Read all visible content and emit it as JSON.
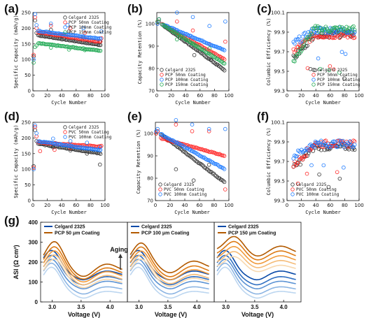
{
  "panel_labels": [
    "(a)",
    "(b)",
    "(c)",
    "(d)",
    "(e)",
    "(f)",
    "(g)"
  ],
  "colors": {
    "celgard": "#333333",
    "pc50": "#ff2a2a",
    "pc100": "#1e7bff",
    "pc150": "#22aa55",
    "g_celgard": [
      "#0a4aa8",
      "#2f6fc2",
      "#5c93d4",
      "#8cb5e3",
      "#bcd6f0"
    ],
    "g_pcp": [
      "#b35a00",
      "#dd7a14",
      "#f09a3c",
      "#f5bb77",
      "#f8d8ae"
    ]
  },
  "chart_data": [
    {
      "id": "a",
      "type": "scatter",
      "xlabel": "Cycle Number",
      "ylabel": "Specific Capacity (mAh/g)",
      "xlim": [
        0,
        100
      ],
      "ylim": [
        0,
        250
      ],
      "xticks": [
        "0",
        "20",
        "40",
        "60",
        "80",
        "100"
      ],
      "yticks": [
        "0",
        "50",
        "100",
        "150",
        "200",
        "250"
      ],
      "legend_position": "top-right",
      "series": [
        {
          "name": "Celgard 2325",
          "color_key": "celgard",
          "start": 178,
          "end": 146,
          "early": [
            110,
            225,
            185
          ],
          "outliers": [
            [
              25,
              195
            ],
            [
              50,
              190
            ],
            [
              70,
              170
            ],
            [
              93,
              158
            ]
          ]
        },
        {
          "name": "PCP 50nm Coating",
          "color_key": "pc50",
          "start": 188,
          "end": 156,
          "early": [
            115,
            235,
            200
          ],
          "outliers": [
            [
              25,
              208
            ],
            [
              52,
              200
            ],
            [
              72,
              185
            ],
            [
              95,
              168
            ]
          ]
        },
        {
          "name": "PCP 100nm Coating",
          "color_key": "pc100",
          "start": 192,
          "end": 166,
          "early": [
            100,
            245,
            210
          ],
          "outliers": [
            [
              25,
              215
            ],
            [
              48,
              210
            ],
            [
              70,
              200
            ],
            [
              95,
              190
            ]
          ]
        },
        {
          "name": "PCP 150nm Coating",
          "color_key": "pc150",
          "start": 152,
          "end": 128,
          "early": [
            90,
            140,
            145
          ],
          "outliers": [
            [
              25,
              138
            ],
            [
              50,
              132
            ],
            [
              72,
              130
            ]
          ]
        }
      ]
    },
    {
      "id": "b",
      "type": "scatter",
      "xlabel": "Cycle Number",
      "ylabel": "Capacity Retention (%)",
      "xlim": [
        0,
        100
      ],
      "ylim": [
        70,
        105
      ],
      "xticks": [
        "0",
        "20",
        "40",
        "60",
        "80",
        "100"
      ],
      "yticks": [
        "70",
        "80",
        "90",
        "100"
      ],
      "legend_position": "bottom-left",
      "series": [
        {
          "name": "Celgard 2325",
          "color_key": "celgard",
          "start": 100,
          "end": 79,
          "early": [
            100,
            101
          ],
          "outliers": [
            [
              28,
              96
            ],
            [
              52,
              86
            ],
            [
              75,
              84
            ]
          ]
        },
        {
          "name": "PCP 50nm Coating",
          "color_key": "pc50",
          "start": 100,
          "end": 84,
          "early": [
            101,
            102
          ],
          "outliers": [
            [
              28,
              101
            ],
            [
              50,
              97
            ],
            [
              73,
              91
            ],
            [
              95,
              92
            ]
          ]
        },
        {
          "name": "PCP 100nm Coating",
          "color_key": "pc100",
          "start": 100,
          "end": 88,
          "early": [
            100,
            102
          ],
          "outliers": [
            [
              28,
              105
            ],
            [
              50,
              103
            ],
            [
              73,
              99
            ],
            [
              95,
              101
            ]
          ]
        },
        {
          "name": "PCP 150nm Coating",
          "color_key": "pc150",
          "start": 100,
          "end": 82,
          "early": [
            101,
            102
          ],
          "outliers": [
            [
              28,
              93
            ],
            [
              50,
              91
            ],
            [
              73,
              89
            ]
          ]
        }
      ]
    },
    {
      "id": "c",
      "type": "scatter",
      "xlabel": "Cycle Number",
      "ylabel": "Columbic Efficiency (%)",
      "xlim": [
        0,
        100
      ],
      "ylim": [
        99.3,
        100.1
      ],
      "xticks": [
        "0",
        "20",
        "40",
        "60",
        "80",
        "100"
      ],
      "yticks": [
        "99.3",
        "99.5",
        "99.7",
        "99.9",
        "100.1"
      ],
      "legend_position": "bottom-right",
      "series": [
        {
          "name": "Celgard 2325",
          "color_key": "celgard",
          "level": 99.88,
          "low": 99.62
        },
        {
          "name": "PCP 50nm Coating",
          "color_key": "pc50",
          "level": 99.87,
          "low": 99.7
        },
        {
          "name": "PCP 100nm Coating",
          "color_key": "pc100",
          "level": 99.92,
          "low": 99.78
        },
        {
          "name": "PCP 150nm Coating",
          "color_key": "pc150",
          "level": 99.93,
          "low": 99.6
        }
      ]
    },
    {
      "id": "d",
      "type": "scatter",
      "xlabel": "Cycle Number",
      "ylabel": "Specific Capacity (mAh/g)",
      "xlim": [
        0,
        100
      ],
      "ylim": [
        0,
        250
      ],
      "xticks": [
        "0",
        "20",
        "40",
        "60",
        "80",
        "100"
      ],
      "yticks": [
        "0",
        "50",
        "100",
        "150",
        "200",
        "250"
      ],
      "legend_position": "top-right",
      "series": [
        {
          "name": "Celgard 2325",
          "color_key": "celgard",
          "start": 182,
          "end": 150,
          "early": [
            110,
            225,
            190
          ],
          "outliers": [
            [
              28,
              170
            ],
            [
              52,
              160
            ],
            [
              75,
              150
            ],
            [
              93,
              115
            ]
          ]
        },
        {
          "name": "PVC 50nm Coating",
          "color_key": "pc50",
          "start": 186,
          "end": 172,
          "early": [
            105,
            235,
            205
          ],
          "outliers": [
            [
              10,
              158
            ],
            [
              30,
              162
            ],
            [
              52,
              168
            ],
            [
              95,
              175
            ]
          ]
        },
        {
          "name": "PVC 100nm Coating",
          "color_key": "pc100",
          "start": 190,
          "end": 160,
          "early": [
            100,
            240,
            215
          ],
          "outliers": [
            [
              28,
              198
            ],
            [
              52,
              190
            ],
            [
              75,
              185
            ],
            [
              93,
              170
            ]
          ]
        }
      ]
    },
    {
      "id": "e",
      "type": "scatter",
      "xlabel": "Cycle Number",
      "ylabel": "Capacity Retention (%)",
      "xlim": [
        0,
        100
      ],
      "ylim": [
        70,
        105
      ],
      "xticks": [
        "0",
        "20",
        "40",
        "60",
        "80",
        "100"
      ],
      "yticks": [
        "70",
        "80",
        "90",
        "100"
      ],
      "legend_position": "bottom-left",
      "series": [
        {
          "name": "Celgard 2325",
          "color_key": "celgard",
          "start": 100,
          "end": 78,
          "early": [
            100,
            101
          ],
          "outliers": [
            [
              28,
              84
            ],
            [
              52,
              79
            ],
            [
              73,
              86
            ]
          ]
        },
        {
          "name": "PVC 50nm Coating",
          "color_key": "pc50",
          "start": 98,
          "end": 90,
          "early": [
            100,
            101
          ],
          "outliers": [
            [
              28,
              104
            ],
            [
              50,
              101
            ],
            [
              73,
              101
            ],
            [
              95,
              75
            ]
          ]
        },
        {
          "name": "PVC 100nm Coating",
          "color_key": "pc100",
          "start": 100,
          "end": 84,
          "early": [
            101,
            102
          ],
          "outliers": [
            [
              28,
              106
            ],
            [
              50,
              104
            ],
            [
              73,
              102
            ],
            [
              95,
              102
            ]
          ]
        }
      ]
    },
    {
      "id": "f",
      "type": "scatter",
      "xlabel": "Cycle Number",
      "ylabel": "Columbic Efficiency (%)",
      "xlim": [
        0,
        100
      ],
      "ylim": [
        99.3,
        100.1
      ],
      "xticks": [
        "0",
        "20",
        "40",
        "60",
        "80",
        "100"
      ],
      "yticks": [
        "99.3",
        "99.5",
        "99.7",
        "99.9",
        "100.1"
      ],
      "legend_position": "bottom-left",
      "series": [
        {
          "name": "Celgard 2325",
          "color_key": "celgard",
          "level": 99.85,
          "low": 99.62
        },
        {
          "name": "PVC 50nm Coating",
          "color_key": "pc50",
          "level": 99.88,
          "low": 99.65
        },
        {
          "name": "PVC 100nm Coating",
          "color_key": "pc100",
          "level": 99.88,
          "low": 99.75
        }
      ]
    },
    {
      "id": "g",
      "type": "line",
      "xlabel": "Voltage (V)",
      "ylabel": "ASI (Ω cm²)",
      "xlim": [
        2.8,
        4.3
      ],
      "ylim": [
        0,
        400
      ],
      "xticks": [
        "3.0",
        "3.5",
        "4.0"
      ],
      "yticks": [
        "0",
        "100",
        "200",
        "300",
        "400"
      ],
      "annotation": "Aging",
      "subplots": [
        {
          "legend": [
            "Celgard 2325",
            "PCP 50 μm Coating"
          ],
          "pcp_peak": [
            290,
            265,
            245,
            225,
            205
          ],
          "pcp_tail": [
            165,
            150,
            135,
            120,
            105
          ]
        },
        {
          "legend": [
            "Celgard 2325",
            "PCP 100 μm Coating"
          ],
          "pcp_peak": [
            285,
            265,
            245,
            225,
            205
          ],
          "pcp_tail": [
            180,
            160,
            145,
            125,
            110
          ]
        },
        {
          "legend": [
            "Celgard 2325",
            "PCP 150 μm Coating"
          ],
          "pcp_peak": [
            325,
            300,
            275,
            250,
            225
          ],
          "pcp_tail": [
            255,
            235,
            215,
            195,
            175
          ]
        }
      ],
      "celgard_peak": [
        245,
        220,
        200,
        180,
        160
      ],
      "celgard_tail": [
        150,
        125,
        105,
        80,
        60
      ]
    }
  ]
}
